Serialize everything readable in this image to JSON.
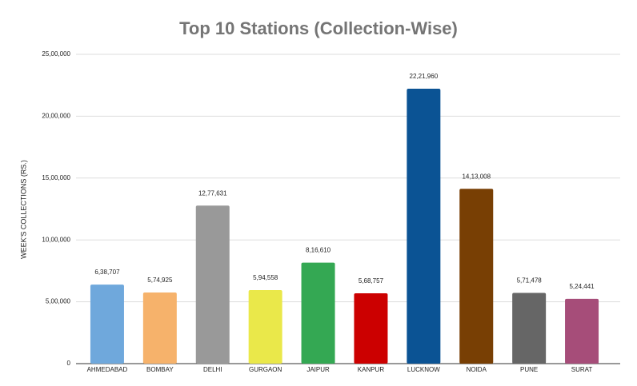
{
  "chart_data": {
    "type": "bar",
    "title": "Top 10 Stations (Collection-Wise)",
    "y_label": "WEEK'S COLLECTIONS (RS.)",
    "categories": [
      "AHMEDABAD",
      "BOMBAY",
      "DELHI",
      "GURGAON",
      "JAIPUR",
      "KANPUR",
      "LUCKNOW",
      "NOIDA",
      "PUNE",
      "SURAT"
    ],
    "values": [
      638707,
      574925,
      1277631,
      594558,
      816610,
      568757,
      2221960,
      1413008,
      571478,
      524441
    ],
    "value_labels": [
      "6,38,707",
      "5,74,925",
      "12,77,631",
      "5,94,558",
      "8,16,610",
      "5,68,757",
      "22,21,960",
      "14,13,008",
      "5,71,478",
      "5,24,441"
    ],
    "colors": [
      "#6fa8dc",
      "#f6b26b",
      "#999999",
      "#eae84a",
      "#34a853",
      "#cc0000",
      "#0b5394",
      "#783f04",
      "#666666",
      "#a64d79"
    ],
    "ylim": [
      0,
      2500000
    ],
    "yticks": [
      0,
      {
        "value": 500000,
        "label": "5,00,000"
      },
      {
        "value": 1000000,
        "label": "10,00,000"
      },
      {
        "value": 1500000,
        "label": "15,00,000"
      },
      {
        "value": 2000000,
        "label": "20,00,000"
      },
      {
        "value": 2500000,
        "label": "25,00,000"
      }
    ],
    "grid": true
  }
}
